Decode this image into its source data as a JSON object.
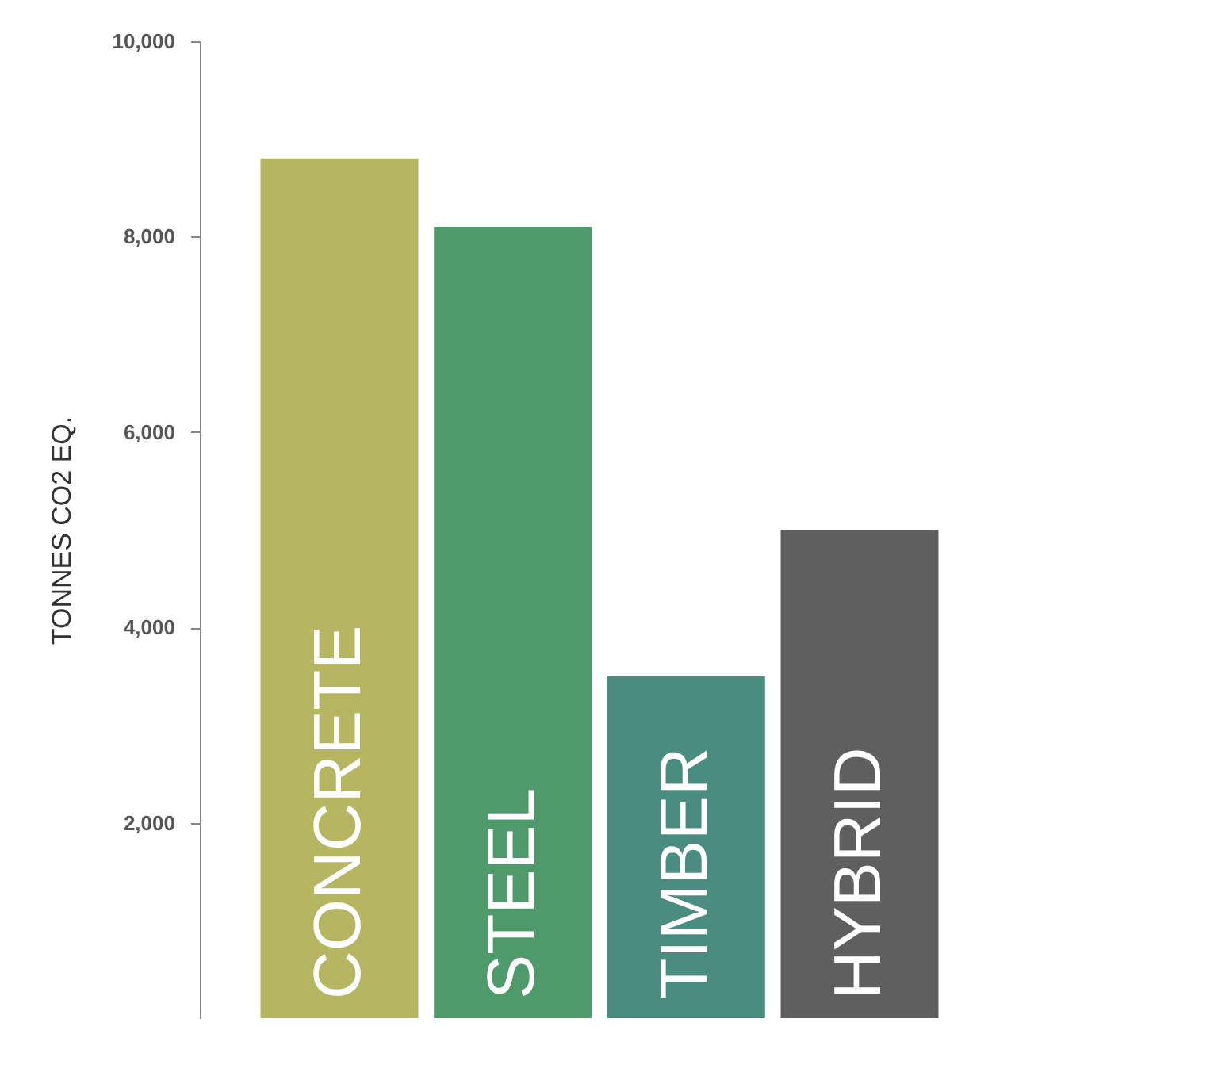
{
  "chart_data": {
    "type": "bar",
    "ylabel": "TONNES CO2 EQ.",
    "categories": [
      "CONCRETE",
      "STEEL",
      "TIMBER",
      "HYBRID"
    ],
    "values": [
      8800,
      8100,
      3500,
      5000
    ],
    "colors": [
      "#b5b562",
      "#4f9a6a",
      "#4a8c80",
      "#5f5f5f"
    ],
    "ylim": [
      0,
      10000
    ],
    "yticks": [
      {
        "value": 2000,
        "label": "2,000"
      },
      {
        "value": 4000,
        "label": "4,000"
      },
      {
        "value": 6000,
        "label": "6,000"
      },
      {
        "value": 8000,
        "label": "8,000"
      },
      {
        "value": 10000,
        "label": "10,000"
      }
    ],
    "grid": false
  }
}
